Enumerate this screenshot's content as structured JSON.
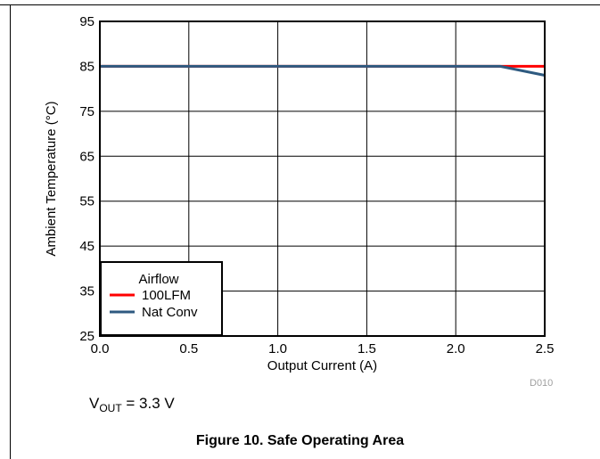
{
  "chart_data": {
    "type": "line",
    "title": "",
    "xlabel": "Output Current (A)",
    "ylabel": "Ambient Temperature (°C)",
    "xlim": [
      0,
      2.5
    ],
    "ylim": [
      25,
      95
    ],
    "x_ticks": [
      "0.0",
      "0.5",
      "1.0",
      "1.5",
      "2.0",
      "2.5"
    ],
    "y_ticks": [
      "25",
      "35",
      "45",
      "55",
      "65",
      "75",
      "85",
      "95"
    ],
    "grid": true,
    "legend": {
      "title": "Airflow",
      "placement": "bottom-left",
      "entries": [
        "100LFM",
        "Nat Conv"
      ]
    },
    "series": [
      {
        "name": "100LFM",
        "color": "#ff0000",
        "x": [
          0,
          2.25,
          2.5
        ],
        "y": [
          85,
          85,
          85
        ]
      },
      {
        "name": "Nat Conv",
        "color": "#2e5a80",
        "x": [
          0,
          2.25,
          2.5
        ],
        "y": [
          85,
          85,
          83
        ]
      }
    ]
  },
  "figure_code": "D010",
  "vout": {
    "prefix": "V",
    "subscript": "OUT",
    "suffix": " = 3.3 V"
  },
  "caption": "Figure 10. Safe Operating Area"
}
